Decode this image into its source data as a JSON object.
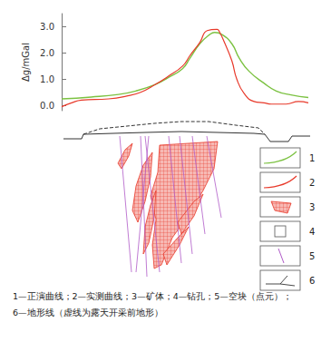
{
  "chart_data": {
    "type": "line",
    "y_label": "Δg/mGal",
    "xlim": [
      0,
      100
    ],
    "ylim": [
      -0.2,
      3.5
    ],
    "yticks": [
      {
        "value": 0,
        "label": "0.0"
      },
      {
        "value": 1,
        "label": "1.0"
      },
      {
        "value": 2,
        "label": "2.0"
      },
      {
        "value": 3,
        "label": "3.0"
      }
    ],
    "tick_labels": "y",
    "grid": false,
    "series": [
      {
        "color": "#7cc242",
        "x": [
          0,
          12,
          23,
          30,
          38,
          43,
          49,
          52,
          56,
          60,
          62,
          65,
          69,
          72,
          76,
          82,
          87,
          93,
          100
        ],
        "values": [
          0.25,
          0.32,
          0.42,
          0.55,
          0.8,
          1.05,
          1.4,
          1.8,
          2.35,
          2.7,
          2.78,
          2.7,
          2.35,
          1.8,
          1.3,
          0.85,
          0.55,
          0.4,
          0.3
        ]
      },
      {
        "color": "#e8392a",
        "x": [
          0,
          4,
          8,
          19,
          26,
          32,
          38,
          43,
          49,
          52,
          56,
          59,
          63,
          64,
          66,
          69,
          71,
          74,
          78,
          82,
          85,
          91,
          96,
          100
        ],
        "values": [
          -0.05,
          0.1,
          0.2,
          0.25,
          0.35,
          0.5,
          0.8,
          1.1,
          1.5,
          1.9,
          2.4,
          2.85,
          2.9,
          2.8,
          2.4,
          1.7,
          1.0,
          0.45,
          0.15,
          0.1,
          0.05,
          0.05,
          0.15,
          0.1
        ]
      }
    ]
  },
  "key_numbers": [
    "1",
    "2",
    "3",
    "4",
    "5",
    "6"
  ],
  "caption": [
    "1—正演曲线；2—实测曲线；3—矿体；4—钻孔；5—空块（点元）；",
    "6—地形线（虚线为露天开采前地形）"
  ]
}
